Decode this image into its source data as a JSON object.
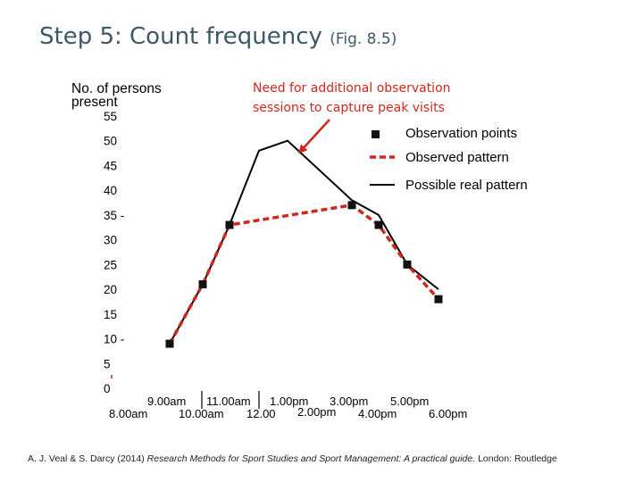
{
  "slide": {
    "title": "Step 5: Count frequency",
    "title_ref": "(Fig. 8.5)",
    "annotation_line1": "Need for additional observation",
    "annotation_line2": "sessions to capture peak visits",
    "citation_pre": "A. J. Veal & S. Darcy (2014) ",
    "citation_em": "Research Methods for Sport Studies and Sport Management: A practical guide.",
    "citation_post": " London: Routledge"
  },
  "chart_data": {
    "type": "line",
    "ylabel_line1": "No. of persons",
    "ylabel_line2": "present",
    "ylim": [
      0,
      55
    ],
    "y_ticks": [
      "0",
      "5",
      "10 -",
      "15",
      "20",
      "25",
      "30",
      "35 -",
      "40",
      "45",
      "50",
      "55"
    ],
    "x_labels": [
      "8.00am",
      "9.00am",
      "10.00am",
      "11.00am",
      "12.00",
      "1.00pm",
      "2.00pm",
      "3.00pm",
      "4.00pm",
      "5.00pm",
      "6.00pm"
    ],
    "legend": [
      {
        "label": "Observation points",
        "marker": "square"
      },
      {
        "label": "Observed pattern",
        "marker": "dashed"
      },
      {
        "label": "Possible real pattern",
        "marker": "solid"
      }
    ],
    "colors": {
      "observed": "#d0261c",
      "real": "#000000",
      "points": "#111111",
      "annotation": "#d0261c"
    },
    "observation_points": [
      {
        "x": "8.00am",
        "y": 9
      },
      {
        "x": "9.00am",
        "y": 21
      },
      {
        "x": "10.00am",
        "y": 33
      },
      {
        "x": "2.00pm",
        "y": 37
      },
      {
        "x": "3.00pm",
        "y": 33
      },
      {
        "x": "4.00pm",
        "y": 25
      },
      {
        "x": "5.00pm",
        "y": 18
      }
    ],
    "real_pattern": [
      {
        "x": "8.00am",
        "y": 9
      },
      {
        "x": "9.00am",
        "y": 21
      },
      {
        "x": "10.00am",
        "y": 33
      },
      {
        "x": "11.00am",
        "y": 48
      },
      {
        "x": "12.00",
        "y": 50
      },
      {
        "x": "2.00pm",
        "y": 38
      },
      {
        "x": "3.00pm",
        "y": 35
      },
      {
        "x": "4.00pm",
        "y": 25
      },
      {
        "x": "5.00pm",
        "y": 20
      }
    ]
  }
}
